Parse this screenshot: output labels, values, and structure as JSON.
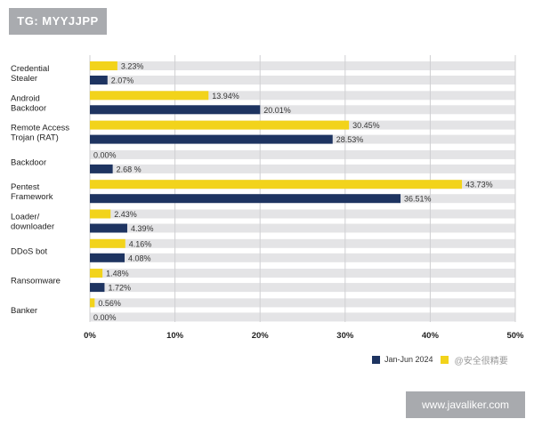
{
  "header": {
    "tag": "TG: MYYJJPP"
  },
  "footer": {
    "url": "www.javaliker.com"
  },
  "watermark": "@安全很精要",
  "colors": {
    "current": "#F2D31B",
    "previous": "#1E3461",
    "track": "#E4E4E6",
    "grid": "#CFCFD2"
  },
  "chart_data": {
    "type": "bar",
    "orientation": "horizontal",
    "categories": [
      [
        "Credential",
        "Stealer"
      ],
      [
        "Android",
        "Backdoor"
      ],
      [
        "Remote Access",
        "Trojan (RAT)"
      ],
      [
        "Backdoor"
      ],
      [
        "Pentest",
        "Framework"
      ],
      [
        "Loader/",
        "downloader"
      ],
      [
        "DDoS bot"
      ],
      [
        "Ransomware"
      ],
      [
        "Banker"
      ]
    ],
    "series": [
      {
        "color": "#F2D31B",
        "values": [
          3.23,
          13.94,
          30.45,
          0.0,
          43.73,
          2.43,
          4.16,
          1.48,
          0.56
        ],
        "labels": [
          "3.23%",
          "13.94%",
          "30.45%",
          "0.00%",
          "43.73%",
          "2.43%",
          "4.16%",
          "1.48%",
          "0.56%"
        ]
      },
      {
        "name": "Jan-Jun 2024",
        "color": "#1E3461",
        "values": [
          2.07,
          20.01,
          28.53,
          2.68,
          36.51,
          4.39,
          4.08,
          1.72,
          0.0
        ],
        "labels": [
          "2.07%",
          "20.01%",
          "28.53%",
          "2.68 %",
          "36.51%",
          "4.39%",
          "4.08%",
          "1.72%",
          "0.00%"
        ]
      }
    ],
    "xlim": [
      0,
      50
    ],
    "xticks": [
      "0%",
      "10%",
      "20%",
      "30%",
      "40%",
      "50%"
    ],
    "grid": true,
    "legend_position": "bottom-right"
  }
}
